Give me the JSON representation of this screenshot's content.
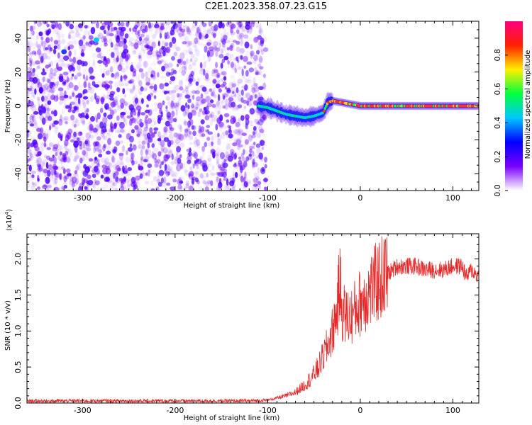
{
  "figure_title": "C2E1.2023.358.07.23.G15",
  "colors": {
    "spectrogram_noise": "#6a00ff",
    "snr_line": "#e62a2a",
    "colorbar_stops": [
      "#ffffff",
      "#7a00ff",
      "#0000ff",
      "#00c8ff",
      "#00ff40",
      "#fff000",
      "#ff2000",
      "#ff0080"
    ]
  },
  "chart_data": [
    {
      "type": "heatmap",
      "title": "",
      "xlabel": "Height of straight line (km)",
      "ylabel": "Frequency (Hz)",
      "xlim": [
        -360,
        128
      ],
      "ylim": [
        -50,
        50
      ],
      "xticks": [
        -300,
        -200,
        -100,
        0,
        100
      ],
      "yticks": [
        40,
        20,
        0,
        -20,
        -40
      ],
      "noise_region_x": [
        -360,
        -102
      ],
      "signal_track": {
        "x": [
          -110,
          -100,
          -90,
          -80,
          -70,
          -60,
          -50,
          -40,
          -35,
          -30,
          -20,
          -10,
          0,
          20,
          40,
          60,
          80,
          100,
          128
        ],
        "frequency": [
          0,
          -1,
          -3,
          -5,
          -6,
          -7,
          -6,
          -4,
          2,
          3,
          2,
          1,
          0,
          0,
          0,
          0,
          0,
          0,
          0
        ]
      },
      "colorbar": {
        "label": "Normalized spectral amplitude",
        "range": [
          0,
          1
        ],
        "ticks": [
          "0.0",
          "0.2",
          "0.4",
          "0.6",
          "0.8"
        ]
      }
    },
    {
      "type": "line",
      "title": "",
      "xlabel": "Height of straight line (km)",
      "ylabel": "SNR (10 * v/v)",
      "multiplier_label": "(x10",
      "multiplier_exp": "4",
      "multiplier_close": ")",
      "xlim": [
        -360,
        128
      ],
      "ylim": [
        0,
        23500
      ],
      "xticks": [
        -300,
        -200,
        -100,
        0,
        100
      ],
      "yticks": [
        "0.0",
        "0.5",
        "1.0",
        "1.5",
        "2.0"
      ],
      "series": [
        {
          "x": [
            -360,
            -300,
            -200,
            -120,
            -100,
            -90,
            -80,
            -70,
            -60,
            -50,
            -45,
            -40,
            -35,
            -30,
            -25,
            -22,
            -20,
            -15,
            -10,
            -5,
            0,
            10,
            20,
            30,
            40,
            50,
            60,
            70,
            80,
            90,
            100,
            110,
            115,
            120,
            128
          ],
          "values": [
            300,
            300,
            300,
            300,
            400,
            700,
            1000,
            1500,
            2500,
            4000,
            5000,
            6500,
            8000,
            10000,
            13000,
            17000,
            13000,
            12000,
            12000,
            13000,
            14000,
            15500,
            17000,
            18000,
            19000,
            19000,
            19000,
            18500,
            18500,
            18500,
            19000,
            19000,
            17500,
            18500,
            17500
          ]
        }
      ]
    }
  ]
}
